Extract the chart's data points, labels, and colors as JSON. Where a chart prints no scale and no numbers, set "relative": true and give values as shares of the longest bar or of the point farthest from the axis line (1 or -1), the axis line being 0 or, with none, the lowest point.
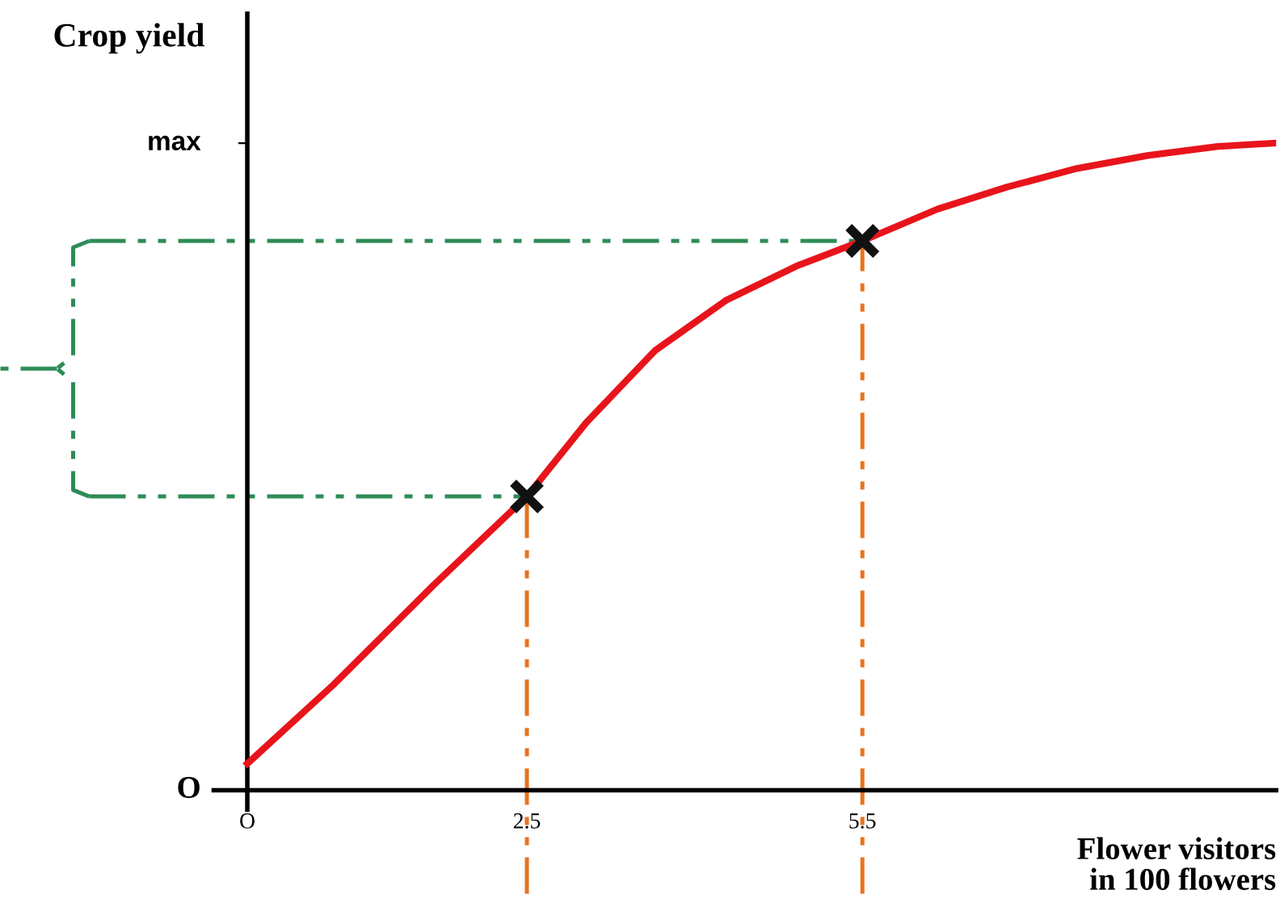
{
  "chart_data": {
    "type": "line",
    "relative": true,
    "xlabel": "Flower visitors\nin 100 flowers",
    "ylabel": "Crop yield",
    "annotations": [
      "O",
      "max"
    ],
    "xlim": [
      -0.3,
      9.2
    ],
    "xticks": [
      {
        "value": 0,
        "label": "O"
      },
      2.5,
      5.5
    ],
    "grid": false,
    "series": [
      {
        "color": "#e8141b",
        "marker": "none",
        "line_style": "solid",
        "x": [
          0,
          0.77,
          1.66,
          2.5,
          3.03,
          3.65,
          4.28,
          4.91,
          5.5,
          6.17,
          6.79,
          7.42,
          8.05,
          8.68,
          9.18
        ],
        "values": [
          0.041,
          0.163,
          0.316,
          0.454,
          0.568,
          0.68,
          0.757,
          0.81,
          0.849,
          0.898,
          0.932,
          0.961,
          0.981,
          0.995,
          1
        ]
      },
      {
        "type": "scatter",
        "color": "#111111",
        "marker": "cross",
        "x": [
          2.5,
          5.5
        ],
        "values": [
          0.454,
          0.849
        ]
      }
    ],
    "ref_lines": [
      {
        "axis": "x",
        "value": 2.5,
        "color": "#e8731e",
        "line_style": "dashed"
      },
      {
        "axis": "x",
        "value": 5.5,
        "color": "#e8731e",
        "line_style": "dashed"
      },
      {
        "axis": "y",
        "value": 0.454,
        "color": "#2e8b57",
        "line_style": "dashed"
      },
      {
        "axis": "y",
        "value": 0.849,
        "color": "#2e8b57",
        "line_style": "dashed"
      }
    ]
  }
}
